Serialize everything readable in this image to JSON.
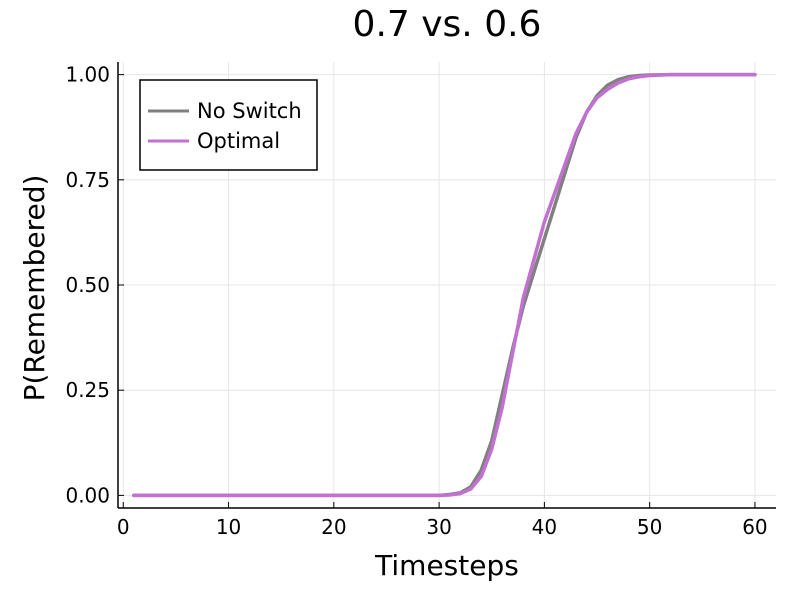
{
  "chart_data": {
    "type": "line",
    "title": "0.7 vs. 0.6",
    "xlabel": "Timesteps",
    "ylabel": "P(Remembered)",
    "xlim": [
      -0.5,
      62
    ],
    "ylim": [
      -0.03,
      1.03
    ],
    "x_ticks": [
      0,
      10,
      20,
      30,
      40,
      50,
      60
    ],
    "x_tick_labels": [
      "0",
      "10",
      "20",
      "30",
      "40",
      "50",
      "60"
    ],
    "y_ticks": [
      0,
      0.25,
      0.5,
      0.75,
      1.0
    ],
    "y_tick_labels": [
      "0.00",
      "0.25",
      "0.50",
      "0.75",
      "1.00"
    ],
    "grid": true,
    "legend_position": "top-left",
    "series": [
      {
        "name": "No Switch",
        "color": "#808080",
        "x": [
          1,
          5,
          10,
          15,
          20,
          25,
          30,
          31,
          32,
          33,
          34,
          35,
          36,
          37,
          38,
          39,
          40,
          41,
          42,
          43,
          44,
          45,
          46,
          47,
          48,
          49,
          50,
          52,
          55,
          60
        ],
        "y": [
          0,
          0,
          0,
          0,
          0,
          0,
          0,
          0.002,
          0.006,
          0.02,
          0.06,
          0.13,
          0.24,
          0.35,
          0.45,
          0.53,
          0.61,
          0.69,
          0.77,
          0.85,
          0.91,
          0.95,
          0.975,
          0.988,
          0.995,
          0.998,
          0.999,
          1.0,
          1.0,
          1.0
        ]
      },
      {
        "name": "Optimal",
        "color": "#c271d2",
        "x": [
          1,
          5,
          10,
          15,
          20,
          25,
          30,
          31,
          32,
          33,
          34,
          35,
          36,
          37,
          38,
          39,
          40,
          41,
          42,
          43,
          44,
          45,
          46,
          47,
          48,
          49,
          50,
          52,
          55,
          60
        ],
        "y": [
          0,
          0,
          0,
          0,
          0,
          0,
          0,
          0.001,
          0.004,
          0.015,
          0.045,
          0.11,
          0.21,
          0.34,
          0.47,
          0.56,
          0.65,
          0.72,
          0.79,
          0.86,
          0.91,
          0.945,
          0.965,
          0.98,
          0.99,
          0.995,
          0.998,
          1.0,
          1.0,
          1.0
        ]
      }
    ]
  }
}
